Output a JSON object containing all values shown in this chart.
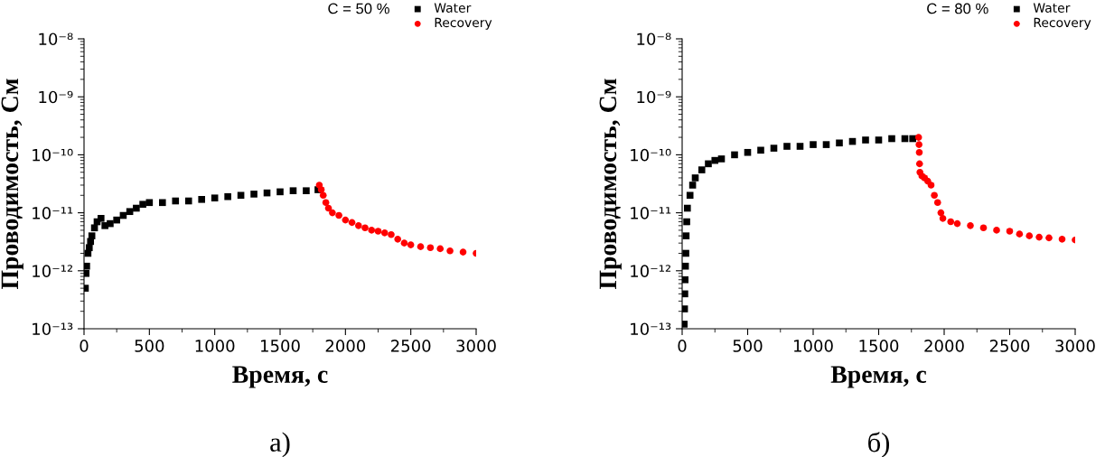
{
  "chart_data": [
    {
      "type": "scatter",
      "xlabel": "Время, с",
      "ylabel": "Проводимость, См",
      "log": "y",
      "legend": "top right",
      "grid": false,
      "xlim": [
        0,
        3000
      ],
      "xticks": [
        0,
        500,
        1000,
        1500,
        2000,
        2500,
        3000
      ],
      "ylim": [
        1e-13,
        1e-08
      ],
      "yticks": [
        {
          "value": 1e-13,
          "label": "10⁻¹³"
        },
        {
          "value": 1e-12,
          "label": "10⁻¹²"
        },
        {
          "value": 1e-11,
          "label": "10⁻¹¹"
        },
        {
          "value": 1e-10,
          "label": "10⁻¹⁰"
        },
        {
          "value": 1e-09,
          "label": "10⁻⁹"
        },
        {
          "value": 1e-08,
          "label": "10⁻⁸"
        }
      ],
      "annotations": [
        "C = 50 %",
        "а)"
      ],
      "series": [
        {
          "name": "Water",
          "color": "#000000",
          "marker": "square",
          "x": [
            10,
            15,
            20,
            30,
            40,
            50,
            60,
            80,
            100,
            130,
            160,
            200,
            250,
            300,
            350,
            400,
            450,
            500,
            600,
            700,
            800,
            900,
            1000,
            1100,
            1200,
            1300,
            1400,
            1500,
            1600,
            1700,
            1790
          ],
          "values": [
            5e-13,
            9e-13,
            1.2e-12,
            2e-12,
            2.5e-12,
            3.2e-12,
            4e-12,
            5.5e-12,
            7e-12,
            8e-12,
            6e-12,
            6.5e-12,
            7.5e-12,
            9e-12,
            1.05e-11,
            1.2e-11,
            1.4e-11,
            1.5e-11,
            1.5e-11,
            1.6e-11,
            1.6e-11,
            1.7e-11,
            1.8e-11,
            1.9e-11,
            2e-11,
            2.1e-11,
            2.2e-11,
            2.3e-11,
            2.4e-11,
            2.4e-11,
            2.5e-11
          ]
        },
        {
          "name": "Recovery",
          "color": "#ff0000",
          "marker": "circle",
          "x": [
            1800,
            1815,
            1830,
            1850,
            1870,
            1900,
            1950,
            2000,
            2050,
            2100,
            2150,
            2200,
            2250,
            2300,
            2350,
            2400,
            2450,
            2500,
            2575,
            2650,
            2725,
            2800,
            2900,
            3000
          ],
          "values": [
            3e-11,
            2.5e-11,
            2e-11,
            1.5e-11,
            1.2e-11,
            1e-11,
            9e-12,
            7.5e-12,
            6.8e-12,
            6e-12,
            5.5e-12,
            5e-12,
            4.8e-12,
            4.5e-12,
            4.2e-12,
            3.5e-12,
            3e-12,
            2.8e-12,
            2.6e-12,
            2.5e-12,
            2.4e-12,
            2.2e-12,
            2.1e-12,
            2e-12
          ]
        }
      ]
    },
    {
      "type": "scatter",
      "xlabel": "Время, с",
      "ylabel": "Проводимость, См",
      "log": "y",
      "legend": "top right",
      "grid": false,
      "xlim": [
        0,
        3000
      ],
      "xticks": [
        0,
        500,
        1000,
        1500,
        2000,
        2500,
        3000
      ],
      "ylim": [
        1e-13,
        1e-08
      ],
      "yticks": [
        {
          "value": 1e-13,
          "label": "10⁻¹³"
        },
        {
          "value": 1e-12,
          "label": "10⁻¹²"
        },
        {
          "value": 1e-11,
          "label": "10⁻¹¹"
        },
        {
          "value": 1e-10,
          "label": "10⁻¹⁰"
        },
        {
          "value": 1e-09,
          "label": "10⁻⁹"
        },
        {
          "value": 1e-08,
          "label": "10⁻⁸"
        }
      ],
      "annotations": [
        "C = 80 %",
        "б)"
      ],
      "series": [
        {
          "name": "Water",
          "color": "#000000",
          "marker": "square",
          "x": [
            15,
            18,
            20,
            22,
            25,
            28,
            30,
            35,
            40,
            60,
            80,
            100,
            150,
            200,
            250,
            300,
            400,
            500,
            600,
            700,
            800,
            900,
            1000,
            1100,
            1200,
            1300,
            1400,
            1500,
            1600,
            1700,
            1760
          ],
          "values": [
            1.2e-13,
            2.2e-13,
            4e-13,
            7e-13,
            1.2e-12,
            2e-12,
            4e-12,
            7e-12,
            1.2e-11,
            2e-11,
            3e-11,
            4e-11,
            5.5e-11,
            7e-11,
            8e-11,
            8.5e-11,
            1e-10,
            1.1e-10,
            1.2e-10,
            1.3e-10,
            1.4e-10,
            1.4e-10,
            1.5e-10,
            1.5e-10,
            1.6e-10,
            1.7e-10,
            1.8e-10,
            1.8e-10,
            1.9e-10,
            1.9e-10,
            1.9e-10
          ]
        },
        {
          "name": "Recovery",
          "color": "#ff0000",
          "marker": "circle",
          "x": [
            1805,
            1808,
            1810,
            1812,
            1815,
            1830,
            1850,
            1875,
            1900,
            1925,
            1950,
            1975,
            1990,
            2050,
            2100,
            2200,
            2300,
            2400,
            2500,
            2575,
            2650,
            2725,
            2800,
            2900,
            3000
          ],
          "values": [
            2e-10,
            1.5e-10,
            1.1e-10,
            7e-11,
            5e-11,
            4.3e-11,
            4e-11,
            3.5e-11,
            3e-11,
            2e-11,
            1.5e-11,
            1e-11,
            8e-12,
            7e-12,
            6.5e-12,
            6e-12,
            5.5e-12,
            5e-12,
            4.8e-12,
            4.3e-12,
            4e-12,
            3.8e-12,
            3.7e-12,
            3.5e-12,
            3.4e-12
          ]
        }
      ]
    }
  ]
}
